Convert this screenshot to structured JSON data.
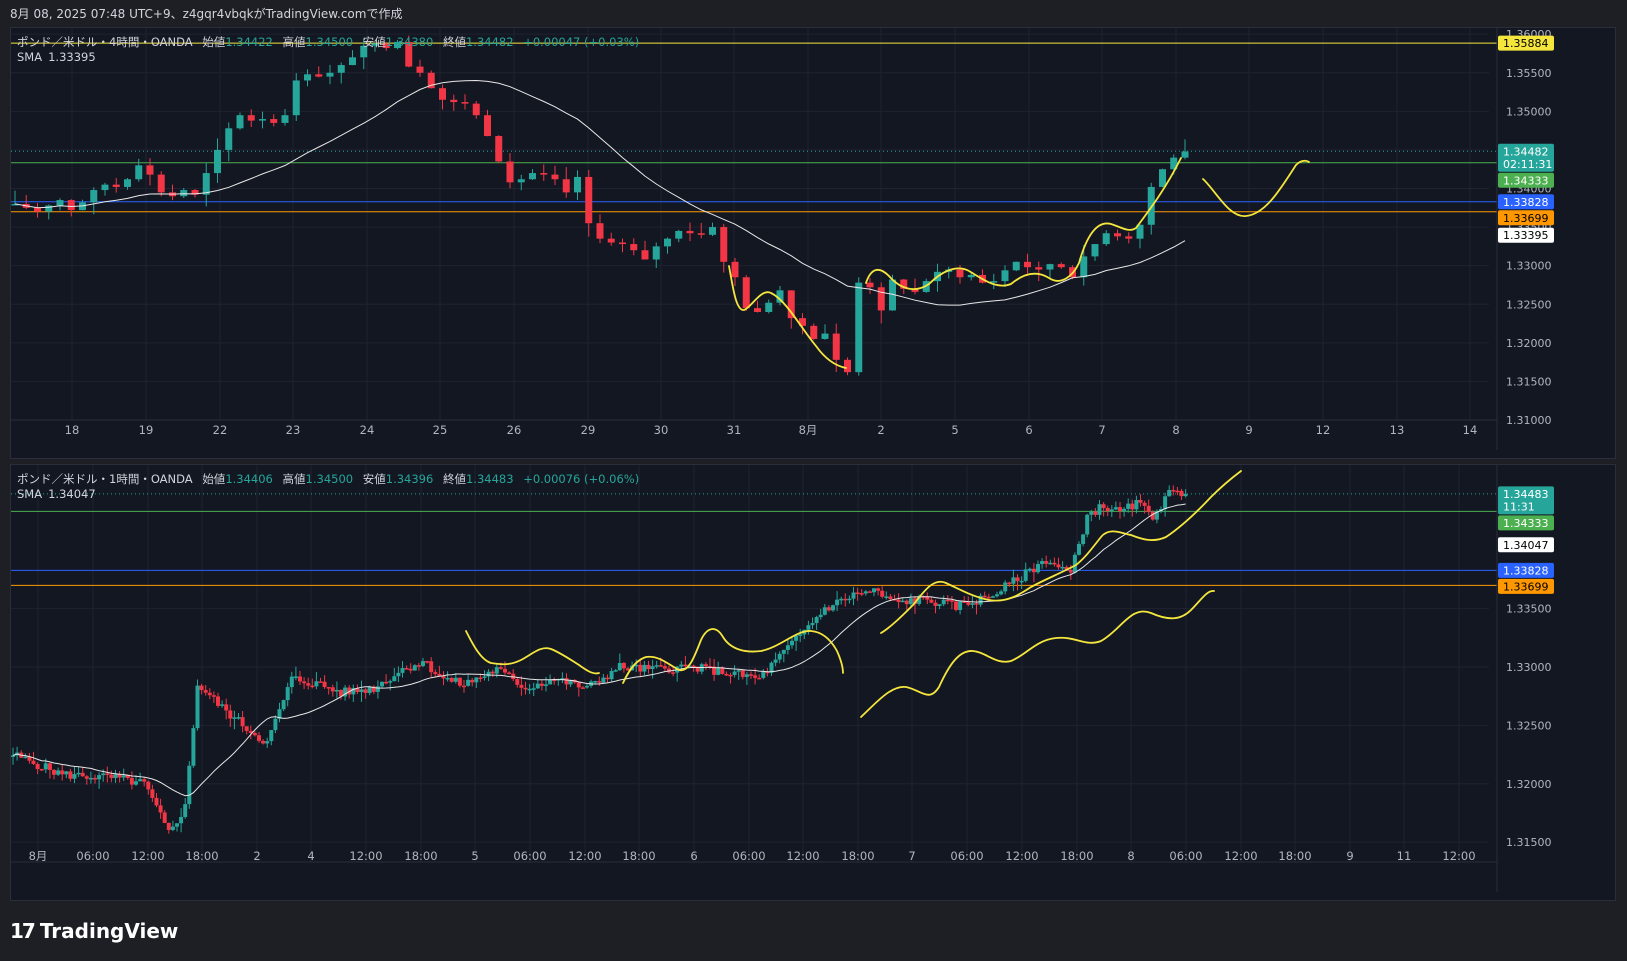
{
  "caption": "8月 08, 2025 07:48 UTC+9、z4gqr4vbqkがTradingView.comで作成",
  "footer": {
    "logo_glyph": "17",
    "brand": "TradingView"
  },
  "colors": {
    "up": "#26a69a",
    "down": "#f23645",
    "sma": "#e8e8e8",
    "drawing": "#f5e63d",
    "green_line": "#4caf50",
    "blue_line": "#2962ff",
    "orange_line": "#ff9800",
    "yellow_line": "#f5e63d",
    "bg": "#131722",
    "grid": "#1f2330",
    "axis_text": "#b2b5be"
  },
  "panels": [
    {
      "symbol": "ポンド／米ドル・4時間・OANDA",
      "ohlc": [
        {
          "k": "始値",
          "v": "1.34422"
        },
        {
          "k": "高値",
          "v": "1.34500"
        },
        {
          "k": "安値",
          "v": "1.34380"
        },
        {
          "k": "終値",
          "v": "1.34482"
        }
      ],
      "change": "+0.00047 (+0.03%)",
      "sma_label": "SMA",
      "sma_value": "1.33395",
      "axis_ticks": [
        "1.36000",
        "1.35500",
        "1.35000",
        "1.34500",
        "1.34000",
        "1.33500",
        "1.33000",
        "1.32500",
        "1.32000",
        "1.31500",
        "1.31000"
      ],
      "price_labels": [
        {
          "text": "1.35884",
          "bg": "#f5e63d",
          "fg": "#000000"
        },
        {
          "text": "1.34482",
          "sub": "02:11:31",
          "bg": "#26a69a",
          "fg": "#ffffff"
        },
        {
          "text": "1.34333",
          "bg": "#4caf50",
          "fg": "#ffffff"
        },
        {
          "text": "1.33828",
          "bg": "#2962ff",
          "fg": "#ffffff"
        },
        {
          "text": "1.33699",
          "bg": "#ff9800",
          "fg": "#000000"
        },
        {
          "text": "1.33395",
          "bg": "#ffffff",
          "fg": "#000000"
        }
      ],
      "x_labels": [
        "18",
        "19",
        "22",
        "23",
        "24",
        "25",
        "26",
        "29",
        "30",
        "31",
        "8月",
        "2",
        "5",
        "6",
        "7",
        "8",
        "9",
        "12",
        "13",
        "14"
      ]
    },
    {
      "symbol": "ポンド／米ドル・1時間・OANDA",
      "ohlc": [
        {
          "k": "始値",
          "v": "1.34406"
        },
        {
          "k": "高値",
          "v": "1.34500"
        },
        {
          "k": "安値",
          "v": "1.34396"
        },
        {
          "k": "終値",
          "v": "1.34483"
        }
      ],
      "change": "+0.00076 (+0.06%)",
      "sma_label": "SMA",
      "sma_value": "1.34047",
      "axis_ticks": [
        "1.33500",
        "1.33000",
        "1.32500",
        "1.32000",
        "1.31500"
      ],
      "price_labels": [
        {
          "text": "1.34483",
          "sub": "11:31",
          "bg": "#26a69a",
          "fg": "#ffffff"
        },
        {
          "text": "1.34333",
          "bg": "#4caf50",
          "fg": "#ffffff"
        },
        {
          "text": "1.34047",
          "bg": "#ffffff",
          "fg": "#000000"
        },
        {
          "text": "1.33828",
          "bg": "#2962ff",
          "fg": "#ffffff"
        },
        {
          "text": "1.33699",
          "bg": "#ff9800",
          "fg": "#000000"
        }
      ],
      "x_labels": [
        "8月",
        "06:00",
        "12:00",
        "18:00",
        "2",
        "4",
        "12:00",
        "18:00",
        "5",
        "06:00",
        "12:00",
        "18:00",
        "6",
        "06:00",
        "12:00",
        "18:00",
        "7",
        "06:00",
        "12:00",
        "18:00",
        "8",
        "06:00",
        "12:00",
        "18:00",
        "9",
        "11",
        "12:00"
      ]
    }
  ],
  "chart_data": [
    {
      "type": "candlestick",
      "title": "ポンド／米ドル・4時間・OANDA",
      "ylim": [
        1.31,
        1.3608
      ],
      "horizontal_levels": [
        1.35884,
        1.34333,
        1.33828,
        1.33699
      ],
      "last_price": 1.34482,
      "sma_last": 1.33395,
      "close": [
        1.338,
        1.3375,
        1.337,
        1.3378,
        1.3385,
        1.3372,
        1.3382,
        1.3398,
        1.3405,
        1.3402,
        1.3412,
        1.343,
        1.3418,
        1.3395,
        1.339,
        1.3398,
        1.3392,
        1.342,
        1.345,
        1.3478,
        1.3495,
        1.3488,
        1.349,
        1.3485,
        1.3495,
        1.354,
        1.3548,
        1.3545,
        1.355,
        1.356,
        1.357,
        1.3585,
        1.3588,
        1.3582,
        1.359,
        1.3558,
        1.355,
        1.353,
        1.3515,
        1.3512,
        1.351,
        1.3495,
        1.3468,
        1.3435,
        1.3408,
        1.3412,
        1.342,
        1.3418,
        1.3412,
        1.3395,
        1.3415,
        1.3355,
        1.3335,
        1.333,
        1.3328,
        1.332,
        1.3308,
        1.3325,
        1.3335,
        1.3345,
        1.3342,
        1.334,
        1.335,
        1.3305,
        1.3285,
        1.3245,
        1.324,
        1.3252,
        1.3268,
        1.3232,
        1.3222,
        1.3205,
        1.3212,
        1.3178,
        1.3162,
        1.3278,
        1.3272,
        1.3242,
        1.3282,
        1.327,
        1.3266,
        1.328,
        1.3292,
        1.3295,
        1.3285,
        1.3288,
        1.3278,
        1.328,
        1.3294,
        1.3305,
        1.3298,
        1.3295,
        1.3302,
        1.3298,
        1.3285,
        1.3312,
        1.3328,
        1.3342,
        1.3338,
        1.3335,
        1.3353,
        1.3402,
        1.3425,
        1.344,
        1.3448
      ]
    },
    {
      "type": "candlestick",
      "title": "ポンド／米ドル・1時間・OANDA",
      "ylim": [
        1.3133,
        1.3473
      ],
      "horizontal_levels": [
        1.34333,
        1.33828,
        1.33699
      ],
      "last_price": 1.34483,
      "sma_last": 1.34047
    }
  ]
}
